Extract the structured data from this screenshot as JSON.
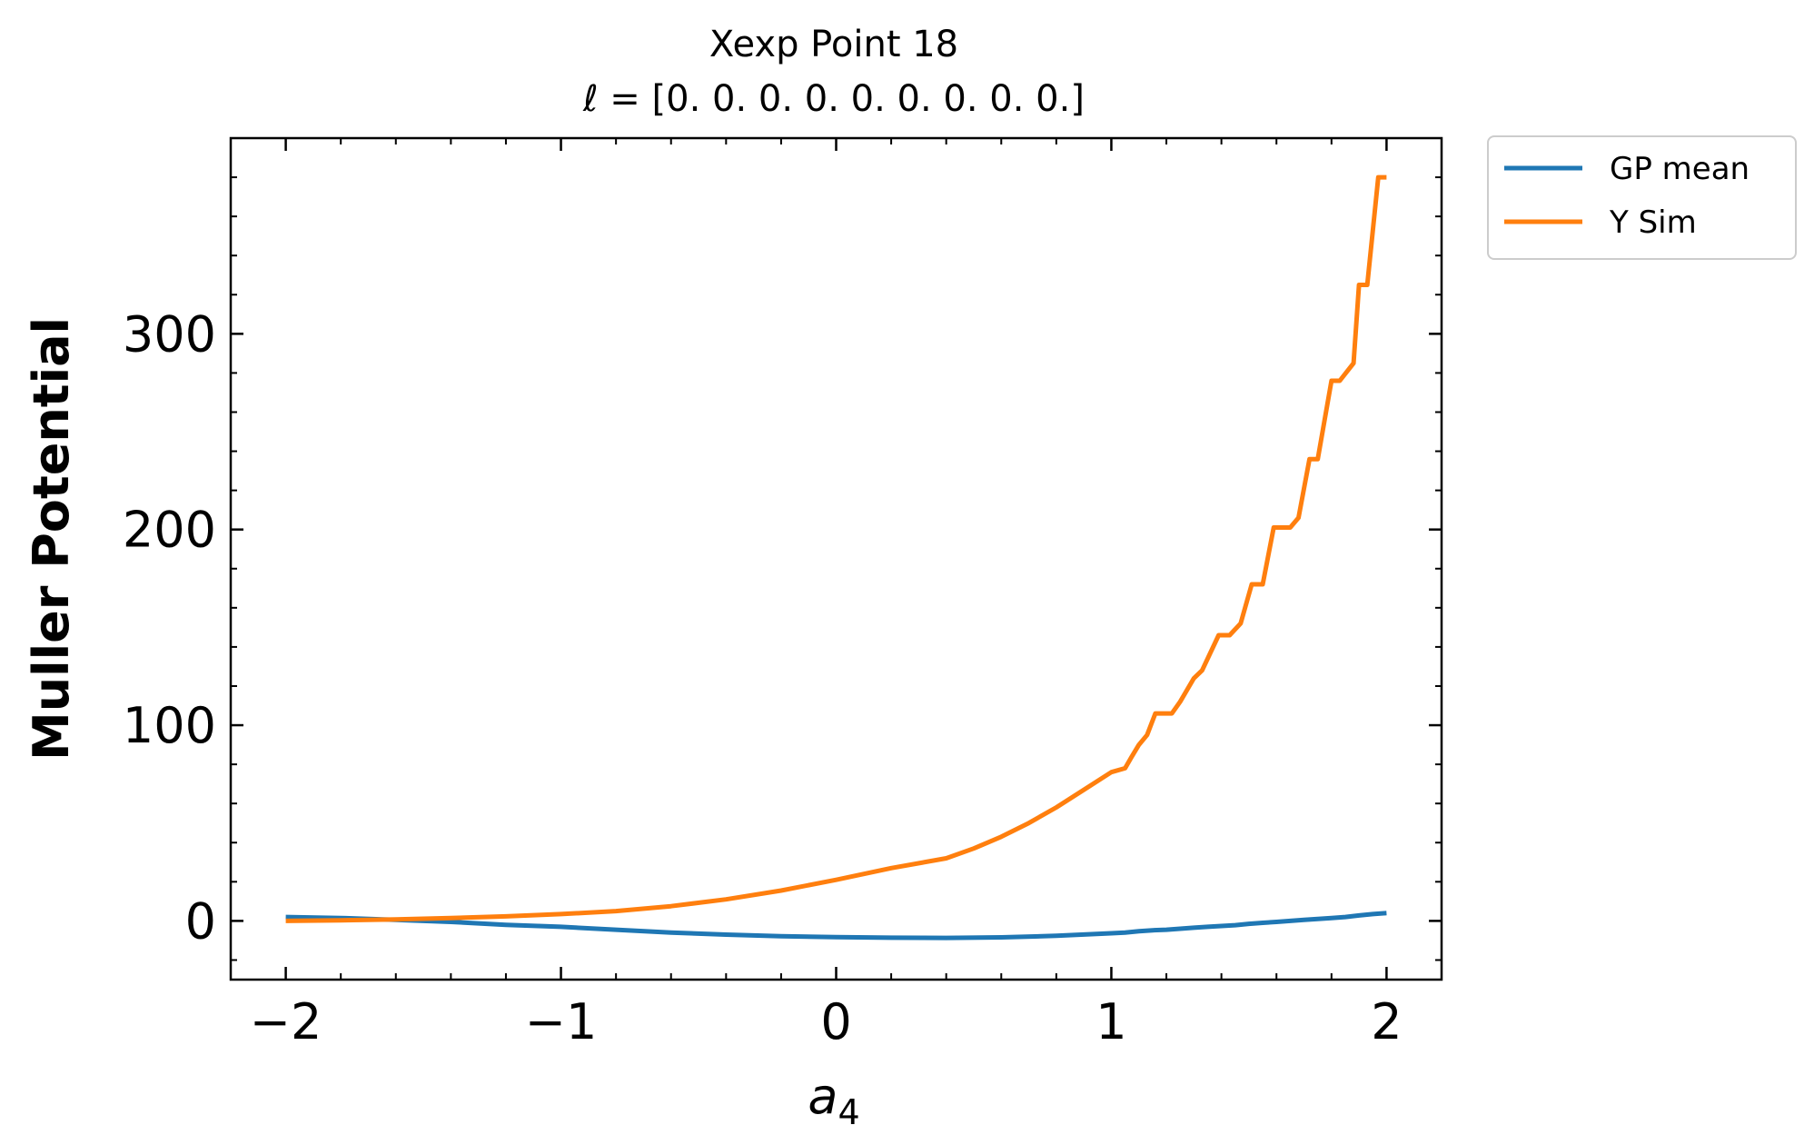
{
  "chart_data": {
    "type": "line",
    "title_line1": "Xexp Point 18",
    "title_line2_symbol": "ℓ",
    "title_line2_eq": " = ",
    "title_line2_value": "[0. 0. 0. 0. 0. 0. 0. 0. 0.]",
    "xlabel_base": "a",
    "xlabel_sub": "4",
    "ylabel": "Muller Potential",
    "xlim": [
      -2.2,
      2.2
    ],
    "ylim": [
      -30,
      400
    ],
    "xticks": [
      -2,
      -1,
      0,
      1,
      2
    ],
    "xtick_labels": [
      "−2",
      "−1",
      "0",
      "1",
      "2"
    ],
    "yticks": [
      0,
      100,
      200,
      300
    ],
    "ytick_labels": [
      "0",
      "100",
      "200",
      "300"
    ],
    "legend_placement": "outside-top-right",
    "grid": false,
    "series": [
      {
        "name": "GP mean",
        "color": "#1f77b4",
        "x": [
          -2,
          -1.8,
          -1.6,
          -1.4,
          -1.2,
          -1.0,
          -0.8,
          -0.6,
          -0.4,
          -0.2,
          0.0,
          0.2,
          0.4,
          0.6,
          0.8,
          1.0,
          1.05,
          1.1,
          1.15,
          1.2,
          1.25,
          1.3,
          1.35,
          1.4,
          1.45,
          1.5,
          1.55,
          1.6,
          1.65,
          1.7,
          1.75,
          1.8,
          1.85,
          1.9,
          1.95,
          2.0
        ],
        "values": [
          2,
          1.5,
          0.5,
          -0.5,
          -2,
          -3,
          -4.5,
          -6,
          -7,
          -7.8,
          -8.3,
          -8.6,
          -8.7,
          -8.4,
          -7.6,
          -6.3,
          -6,
          -5.3,
          -4.8,
          -4.5,
          -4,
          -3.5,
          -3,
          -2.6,
          -2.2,
          -1.5,
          -1,
          -0.5,
          0,
          0.5,
          1,
          1.5,
          2,
          2.8,
          3.5,
          4
        ]
      },
      {
        "name": "Y Sim",
        "color": "#ff7f0e",
        "x": [
          -2,
          -1.8,
          -1.6,
          -1.4,
          -1.2,
          -1.0,
          -0.8,
          -0.6,
          -0.4,
          -0.2,
          0.0,
          0.2,
          0.4,
          0.5,
          0.6,
          0.7,
          0.8,
          0.9,
          1.0,
          1.05,
          1.07,
          1.1,
          1.13,
          1.16,
          1.22,
          1.25,
          1.3,
          1.33,
          1.39,
          1.43,
          1.47,
          1.51,
          1.55,
          1.59,
          1.65,
          1.68,
          1.72,
          1.75,
          1.8,
          1.83,
          1.88,
          1.9,
          1.93,
          1.97,
          2.0
        ],
        "values": [
          0,
          0.3,
          0.8,
          1.5,
          2.3,
          3.5,
          5,
          7.5,
          11,
          15.5,
          21,
          27,
          32,
          37,
          43,
          50,
          58,
          67,
          76,
          78,
          83,
          90,
          95,
          106,
          106,
          112,
          124,
          128,
          146,
          146,
          152,
          172,
          172,
          201,
          201,
          206,
          236,
          236,
          276,
          276,
          285,
          325,
          325,
          380,
          380
        ]
      }
    ]
  }
}
